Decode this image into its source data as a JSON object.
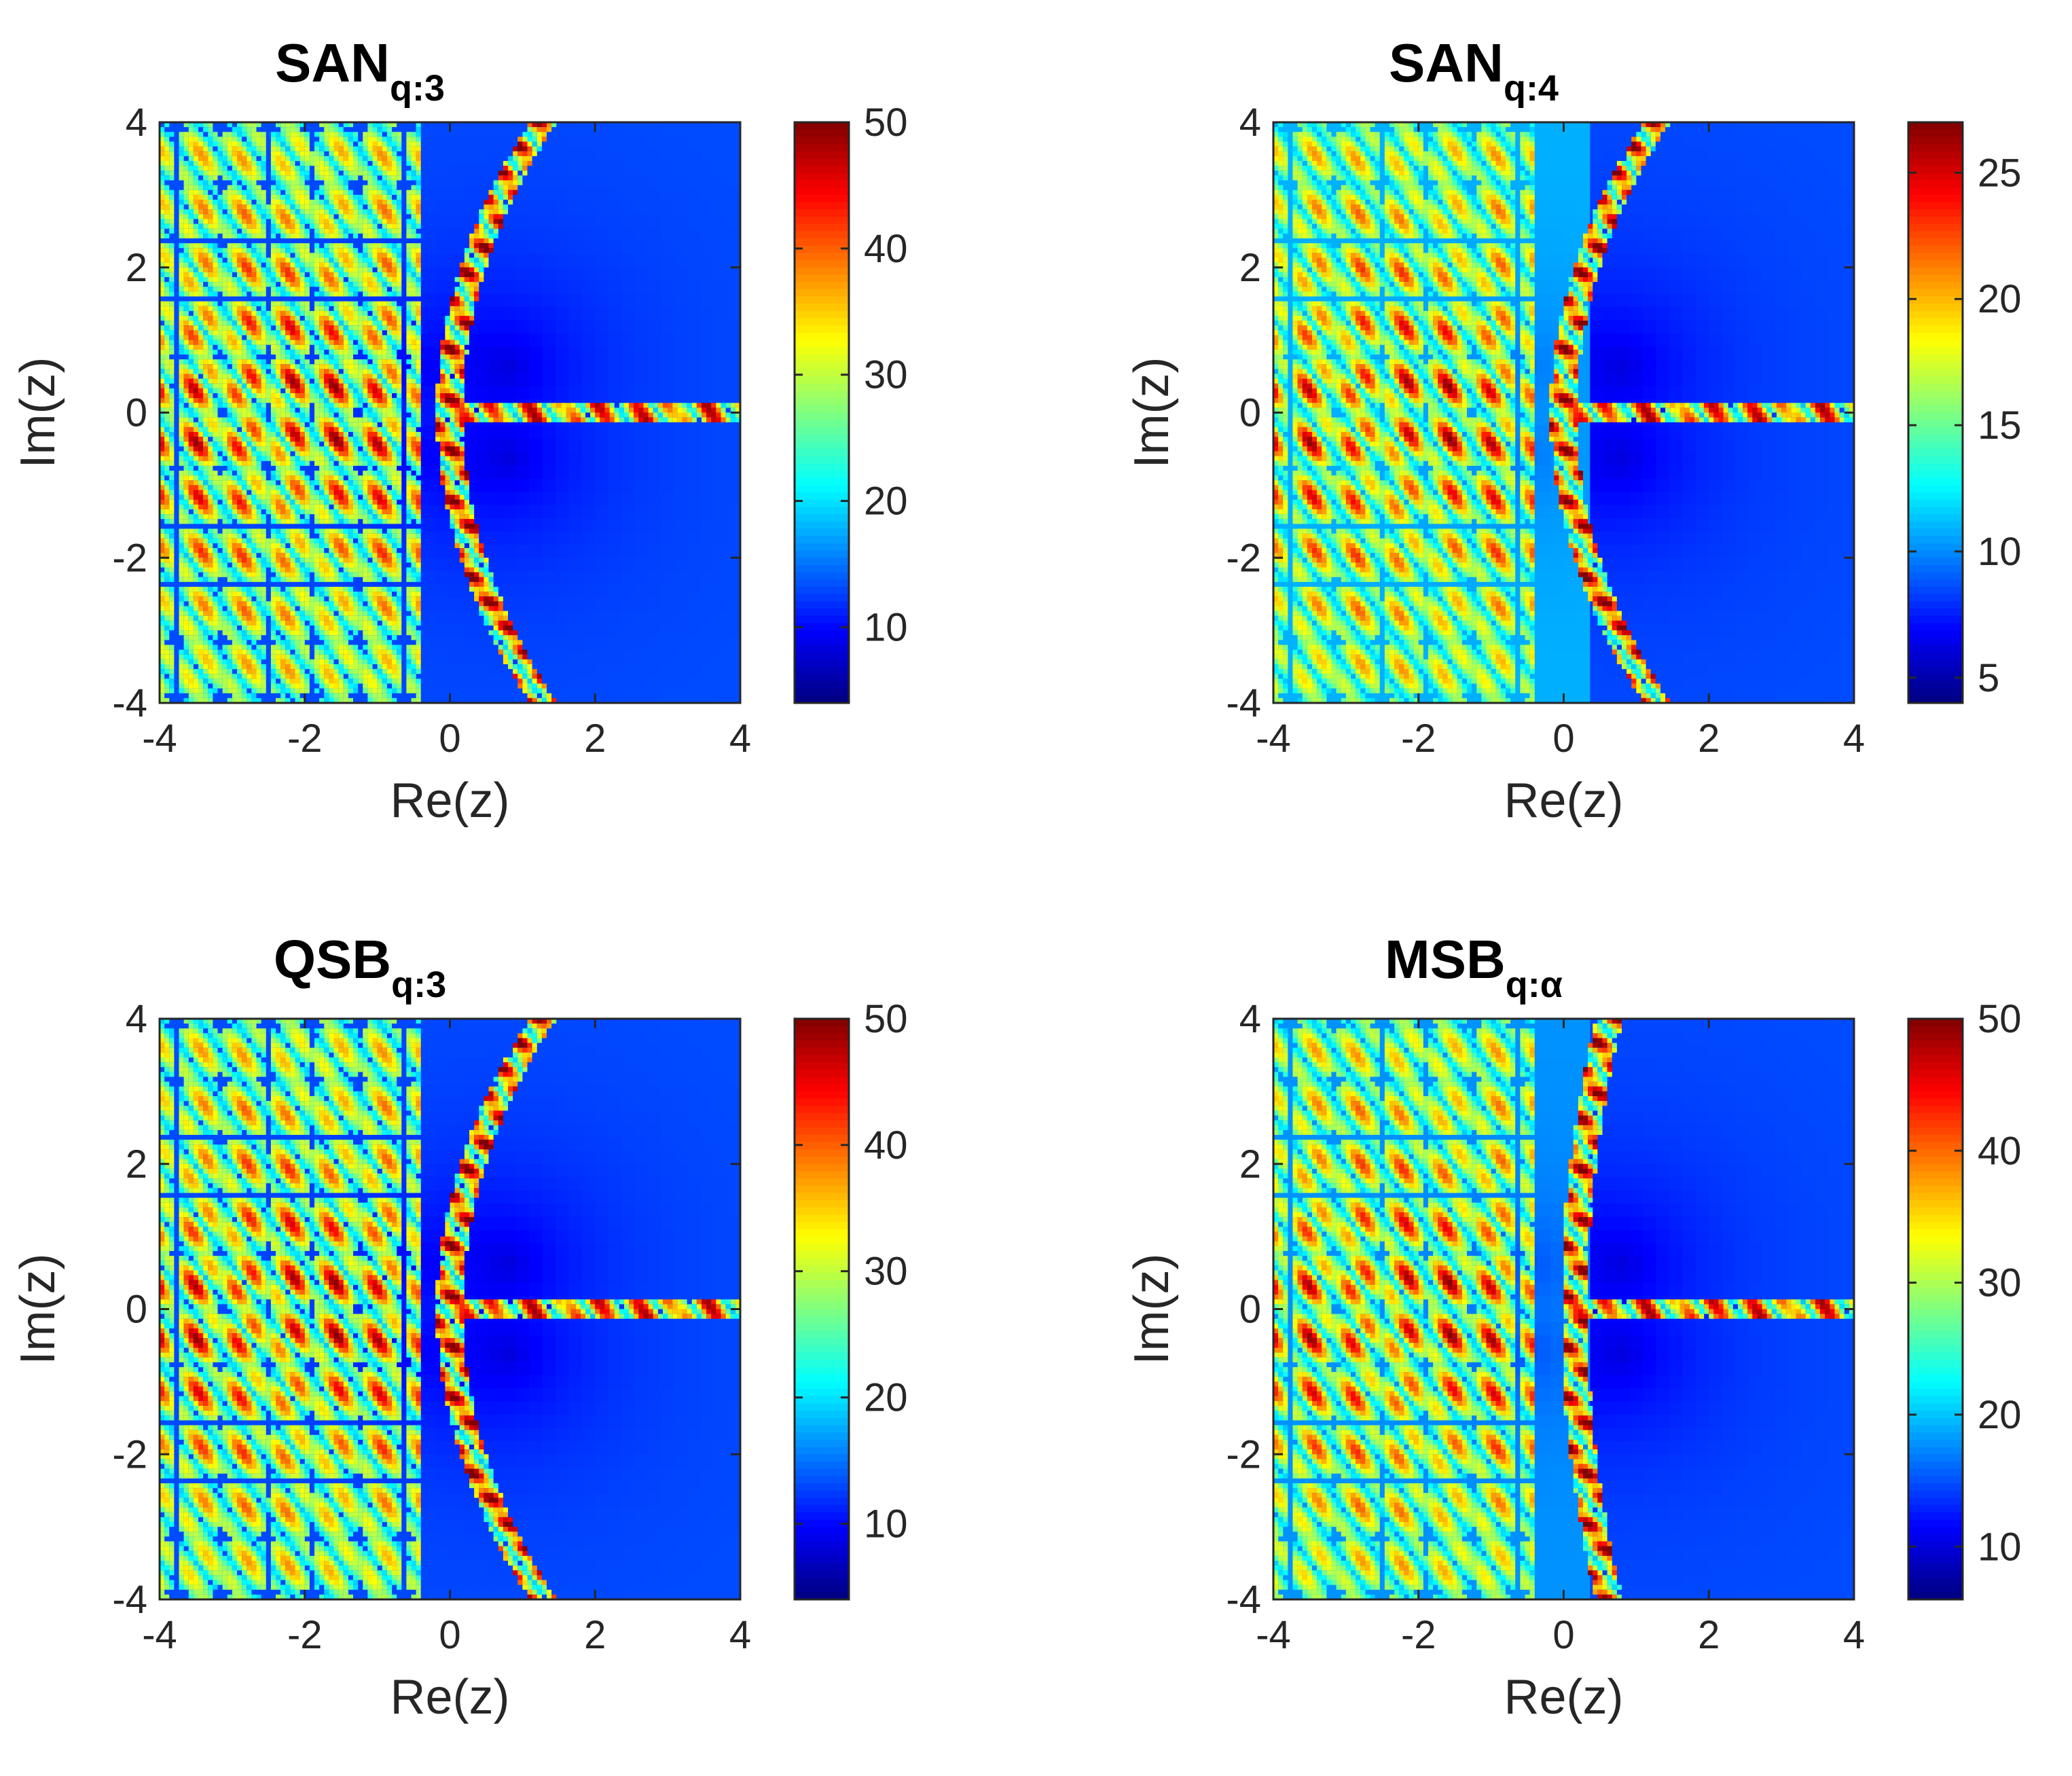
{
  "chart_data": [
    {
      "type": "heatmap",
      "title": "SAN",
      "title_subscript": "q:3",
      "xlabel": "Re(z)",
      "ylabel": "Im(z)",
      "xlim": [
        -4,
        4
      ],
      "ylim": [
        -4,
        4
      ],
      "xticks": [
        -4,
        -2,
        0,
        2,
        4
      ],
      "yticks": [
        -4,
        -2,
        0,
        2,
        4
      ],
      "colorbar": {
        "ticks": [
          10,
          20,
          30,
          40,
          50
        ],
        "range": [
          4,
          50
        ],
        "colormap": "jet"
      },
      "feature": "boundary"
    },
    {
      "type": "heatmap",
      "title": "SAN",
      "title_subscript": "q:4",
      "xlabel": "Re(z)",
      "ylabel": "Im(z)",
      "xlim": [
        -4,
        4
      ],
      "ylim": [
        -4,
        4
      ],
      "xticks": [
        -4,
        -2,
        0,
        2,
        4
      ],
      "yticks": [
        -4,
        -2,
        0,
        2,
        4
      ],
      "colorbar": {
        "ticks": [
          5,
          10,
          15,
          20,
          25
        ],
        "range": [
          4,
          27
        ],
        "colormap": "jet"
      },
      "feature": "curved-boundary"
    },
    {
      "type": "heatmap",
      "title": "QSB",
      "title_subscript": "q:3",
      "xlabel": "Re(z)",
      "ylabel": "Im(z)",
      "xlim": [
        -4,
        4
      ],
      "ylim": [
        -4,
        4
      ],
      "xticks": [
        -4,
        -2,
        0,
        2,
        4
      ],
      "yticks": [
        -4,
        -2,
        0,
        2,
        4
      ],
      "colorbar": {
        "ticks": [
          10,
          20,
          30,
          40,
          50
        ],
        "range": [
          4,
          50
        ],
        "colormap": "jet"
      },
      "feature": "boundary"
    },
    {
      "type": "heatmap",
      "title": "MSB",
      "title_subscript": "q:α",
      "xlabel": "Re(z)",
      "ylabel": "Im(z)",
      "xlim": [
        -4,
        4
      ],
      "ylim": [
        -4,
        4
      ],
      "xticks": [
        -4,
        -2,
        0,
        2,
        4
      ],
      "yticks": [
        -4,
        -2,
        0,
        2,
        4
      ],
      "colorbar": {
        "ticks": [
          10,
          20,
          30,
          40,
          50
        ],
        "range": [
          6,
          50
        ],
        "colormap": "jet"
      },
      "feature": "vertical-boundary"
    }
  ]
}
